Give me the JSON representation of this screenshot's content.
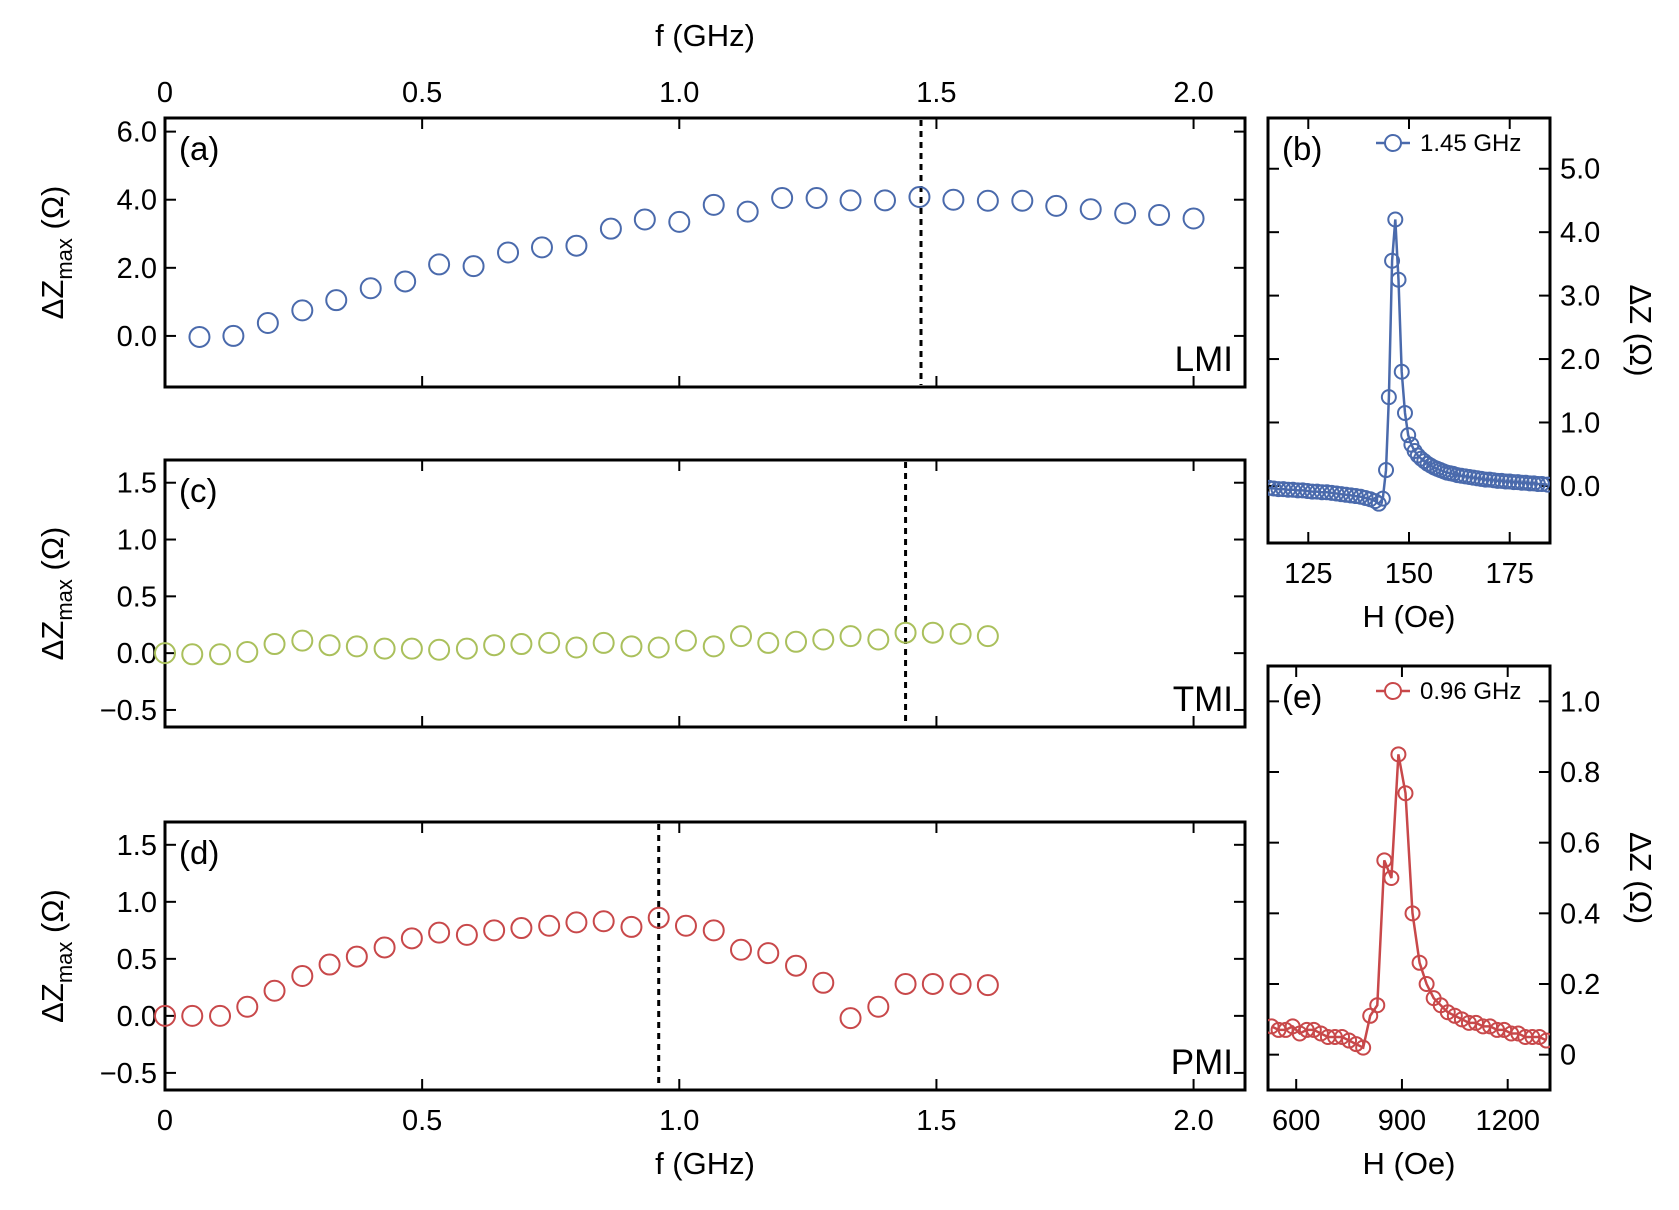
{
  "chart_data": [
    {
      "id": "a",
      "type": "scatter",
      "panel_label": "(a)",
      "corner_label": "LMI",
      "ylabel_main": "ΔZ",
      "ylabel_sub": "max",
      "ylabel_unit": "(Ω)",
      "xlabel": "f (GHz)",
      "xlim": [
        0,
        2.1
      ],
      "ylim": [
        -1.5,
        6.4
      ],
      "xticks": [
        0,
        0.5,
        1.0,
        1.5,
        2.0
      ],
      "xtick_labels": [
        "0",
        "0.5",
        "1.0",
        "1.5",
        "2.0"
      ],
      "yticks": [
        0,
        2,
        4,
        6
      ],
      "ytick_labels": [
        "0.0",
        "2.0",
        "4.0",
        "6.0"
      ],
      "marker_color": "#4a6aac",
      "dashed_line_x": 1.47,
      "series": [
        {
          "x": [
            0.067,
            0.133,
            0.2,
            0.267,
            0.333,
            0.4,
            0.467,
            0.533,
            0.6,
            0.667,
            0.733,
            0.8,
            0.867,
            0.933,
            1.0,
            1.067,
            1.133,
            1.2,
            1.267,
            1.333,
            1.4,
            1.467,
            1.533,
            1.6,
            1.667,
            1.733,
            1.8,
            1.867,
            1.933,
            2.0
          ],
          "y": [
            -0.03,
            0.0,
            0.38,
            0.75,
            1.05,
            1.4,
            1.6,
            2.1,
            2.05,
            2.45,
            2.6,
            2.65,
            3.15,
            3.42,
            3.35,
            3.85,
            3.65,
            4.05,
            4.05,
            3.98,
            3.98,
            4.08,
            4.0,
            3.97,
            3.97,
            3.82,
            3.72,
            3.6,
            3.55,
            3.45
          ]
        }
      ]
    },
    {
      "id": "b",
      "type": "line",
      "panel_label": "(b)",
      "legend": "1.45 GHz",
      "xlabel": "H (Oe)",
      "ylabel": "ΔZ (Ω)",
      "xlim": [
        115,
        185
      ],
      "ylim": [
        -0.9,
        5.8
      ],
      "xticks": [
        125,
        150,
        175
      ],
      "xtick_labels": [
        "125",
        "150",
        "175"
      ],
      "yticks": [
        0,
        1,
        2,
        3,
        4,
        5
      ],
      "ytick_labels": [
        "0.0",
        "1.0",
        "2.0",
        "3.0",
        "4.0",
        "5.0"
      ],
      "marker_color": "#4a6aac",
      "series": [
        {
          "name": "1.45 GHz",
          "x": [
            115.2,
            116.4,
            117.6,
            118.8,
            120,
            121.2,
            122.4,
            123.6,
            124.8,
            126,
            127.2,
            128.4,
            129.6,
            130.8,
            132,
            133.2,
            134.4,
            135.6,
            136.8,
            138,
            139.2,
            140.4,
            141.6,
            142.5,
            143.5,
            144.3,
            145,
            145.8,
            146.6,
            147.4,
            148.2,
            149,
            149.8,
            150.6,
            151.4,
            152.2,
            153,
            153.8,
            154.6,
            155.4,
            156.2,
            157,
            157.8,
            158.6,
            159.4,
            160.2,
            161,
            162,
            163,
            164,
            165,
            166,
            167,
            168,
            169,
            170,
            171,
            172,
            173,
            174,
            175,
            176,
            177,
            178,
            179,
            180,
            181,
            182,
            183,
            184.4
          ],
          "y": [
            -0.03,
            -0.04,
            -0.05,
            -0.05,
            -0.06,
            -0.06,
            -0.07,
            -0.07,
            -0.08,
            -0.09,
            -0.09,
            -0.1,
            -0.1,
            -0.11,
            -0.12,
            -0.13,
            -0.14,
            -0.15,
            -0.16,
            -0.17,
            -0.19,
            -0.21,
            -0.24,
            -0.28,
            -0.2,
            0.25,
            1.4,
            3.55,
            4.2,
            3.25,
            1.8,
            1.15,
            0.8,
            0.65,
            0.55,
            0.48,
            0.43,
            0.39,
            0.35,
            0.32,
            0.29,
            0.27,
            0.25,
            0.23,
            0.21,
            0.2,
            0.19,
            0.17,
            0.16,
            0.15,
            0.14,
            0.13,
            0.12,
            0.11,
            0.1,
            0.1,
            0.09,
            0.08,
            0.08,
            0.07,
            0.07,
            0.06,
            0.06,
            0.05,
            0.05,
            0.04,
            0.04,
            0.03,
            0.03,
            0.02
          ]
        }
      ]
    },
    {
      "id": "c",
      "type": "scatter",
      "panel_label": "(c)",
      "corner_label": "TMI",
      "ylabel_main": "ΔZ",
      "ylabel_sub": "max",
      "ylabel_unit": "(Ω)",
      "xlim": [
        0,
        2.1
      ],
      "ylim": [
        -0.65,
        1.7
      ],
      "yticks": [
        -0.5,
        0,
        0.5,
        1.0,
        1.5
      ],
      "ytick_labels": [
        "−0.5",
        "0.0",
        "0.5",
        "1.0",
        "1.5"
      ],
      "marker_color": "#aac05c",
      "dashed_line_x": 1.44,
      "series": [
        {
          "x": [
            0.0,
            0.053,
            0.107,
            0.16,
            0.213,
            0.267,
            0.32,
            0.373,
            0.427,
            0.48,
            0.533,
            0.587,
            0.64,
            0.693,
            0.747,
            0.8,
            0.853,
            0.907,
            0.96,
            1.013,
            1.067,
            1.12,
            1.173,
            1.227,
            1.28,
            1.333,
            1.387,
            1.44,
            1.493,
            1.547,
            1.6
          ],
          "y": [
            0.0,
            -0.01,
            -0.01,
            0.01,
            0.08,
            0.11,
            0.07,
            0.06,
            0.04,
            0.04,
            0.03,
            0.04,
            0.07,
            0.08,
            0.09,
            0.05,
            0.09,
            0.06,
            0.05,
            0.11,
            0.06,
            0.15,
            0.09,
            0.1,
            0.12,
            0.15,
            0.12,
            0.18,
            0.18,
            0.17,
            0.15
          ]
        }
      ]
    },
    {
      "id": "d",
      "type": "scatter",
      "panel_label": "(d)",
      "corner_label": "PMI",
      "ylabel_main": "ΔZ",
      "ylabel_sub": "max",
      "ylabel_unit": "(Ω)",
      "xlabel": "f (GHz)",
      "xlim": [
        0,
        2.1
      ],
      "ylim": [
        -0.65,
        1.7
      ],
      "xticks": [
        0,
        0.5,
        1.0,
        1.5,
        2.0
      ],
      "xtick_labels": [
        "0",
        "0.5",
        "1.0",
        "1.5",
        "2.0"
      ],
      "yticks": [
        -0.5,
        0,
        0.5,
        1.0,
        1.5
      ],
      "ytick_labels": [
        "−0.5",
        "0.0",
        "0.5",
        "1.0",
        "1.5"
      ],
      "marker_color": "#c8484a",
      "dashed_line_x": 0.96,
      "series": [
        {
          "x": [
            0.0,
            0.053,
            0.107,
            0.16,
            0.213,
            0.267,
            0.32,
            0.373,
            0.427,
            0.48,
            0.533,
            0.587,
            0.64,
            0.693,
            0.747,
            0.8,
            0.853,
            0.907,
            0.96,
            1.013,
            1.067,
            1.12,
            1.173,
            1.227,
            1.28,
            1.333,
            1.387,
            1.44,
            1.493,
            1.547,
            1.6
          ],
          "y": [
            0.0,
            0.0,
            0.0,
            0.08,
            0.22,
            0.35,
            0.45,
            0.52,
            0.6,
            0.68,
            0.73,
            0.71,
            0.75,
            0.77,
            0.79,
            0.82,
            0.83,
            0.78,
            0.86,
            0.79,
            0.75,
            0.58,
            0.55,
            0.44,
            0.29,
            -0.02,
            0.08,
            0.28,
            0.28,
            0.28,
            0.27
          ]
        }
      ]
    },
    {
      "id": "e",
      "type": "line",
      "panel_label": "(e)",
      "legend": "0.96 GHz",
      "xlabel": "H (Oe)",
      "ylabel": "ΔZ (Ω)",
      "xlim": [
        520,
        1320
      ],
      "ylim": [
        -0.1,
        1.1
      ],
      "xticks": [
        600,
        900,
        1200
      ],
      "xtick_labels": [
        "600",
        "900",
        "1200"
      ],
      "yticks": [
        0,
        0.2,
        0.4,
        0.6,
        0.8,
        1.0
      ],
      "ytick_labels": [
        "0",
        "0.2",
        "0.4",
        "0.6",
        "0.8",
        "1.0"
      ],
      "marker_color": "#c8484a",
      "series": [
        {
          "name": "0.96 GHz",
          "x": [
            530,
            550,
            570,
            590,
            610,
            630,
            650,
            670,
            690,
            710,
            730,
            750,
            770,
            790,
            810,
            830,
            850,
            870,
            890,
            910,
            930,
            950,
            970,
            990,
            1010,
            1030,
            1050,
            1070,
            1090,
            1110,
            1130,
            1150,
            1170,
            1190,
            1210,
            1230,
            1250,
            1270,
            1290,
            1310
          ],
          "y": [
            0.08,
            0.07,
            0.07,
            0.08,
            0.06,
            0.07,
            0.07,
            0.06,
            0.05,
            0.05,
            0.05,
            0.04,
            0.03,
            0.02,
            0.11,
            0.14,
            0.55,
            0.5,
            0.85,
            0.74,
            0.4,
            0.26,
            0.2,
            0.16,
            0.14,
            0.12,
            0.11,
            0.1,
            0.09,
            0.09,
            0.08,
            0.08,
            0.07,
            0.07,
            0.06,
            0.06,
            0.05,
            0.05,
            0.05,
            0.04
          ]
        }
      ]
    }
  ]
}
